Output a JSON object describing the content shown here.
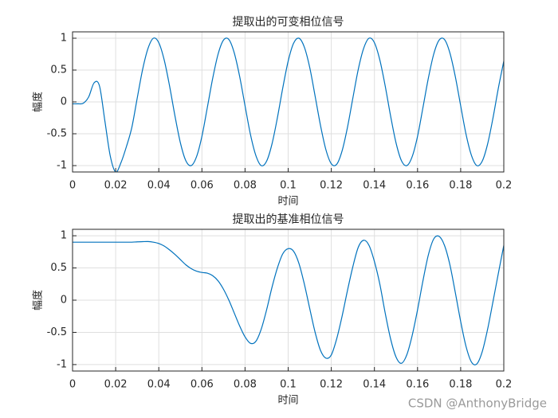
{
  "watermark": "CSDN @AnthonyBridge",
  "chart_data": [
    {
      "type": "line",
      "title": "提取出的可变相位信号",
      "xlabel": "时间",
      "ylabel": "幅度",
      "x": [
        0,
        0.0025,
        0.005,
        0.0075,
        0.01,
        0.0125,
        0.015,
        0.0175,
        0.02,
        0.0225,
        0.025,
        0.0275,
        0.03,
        0.0325,
        0.035,
        0.0375,
        0.04,
        0.0425,
        0.045,
        0.0475,
        0.05,
        0.0525,
        0.055,
        0.0575,
        0.06,
        0.0625,
        0.065,
        0.0675,
        0.07,
        0.0725,
        0.075,
        0.0775,
        0.08,
        0.0825,
        0.085,
        0.0875,
        0.09,
        0.0925,
        0.095,
        0.0975,
        0.1,
        0.1025,
        0.105,
        0.1075,
        0.11,
        0.1125,
        0.115,
        0.1175,
        0.12,
        0.1225,
        0.125,
        0.1275,
        0.13,
        0.1325,
        0.135,
        0.1375,
        0.14,
        0.1425,
        0.145,
        0.1475,
        0.15,
        0.1525,
        0.155,
        0.1575,
        0.16,
        0.1625,
        0.165,
        0.1675,
        0.17,
        0.1725,
        0.175,
        0.1775,
        0.18,
        0.1825,
        0.185,
        0.1875,
        0.19,
        0.1925,
        0.195,
        0.1975,
        0.2
      ],
      "series": [
        {
          "color": "#0072bd",
          "values": [
            -0.03,
            -0.03,
            -0.02,
            0.08,
            0.3,
            0.25,
            -0.3,
            -0.85,
            -1.1,
            -0.95,
            -0.7,
            -0.4,
            0.06,
            0.51,
            0.84,
            1.0,
            0.93,
            0.66,
            0.25,
            -0.22,
            -0.64,
            -0.92,
            -1.0,
            -0.86,
            -0.54,
            -0.09,
            0.37,
            0.75,
            0.97,
            0.98,
            0.77,
            0.4,
            -0.06,
            -0.51,
            -0.84,
            -1.0,
            -0.93,
            -0.66,
            -0.25,
            0.22,
            0.64,
            0.92,
            1.0,
            0.86,
            0.54,
            0.09,
            -0.37,
            -0.75,
            -0.97,
            -0.98,
            -0.77,
            -0.4,
            0.06,
            0.51,
            0.84,
            1.0,
            0.93,
            0.66,
            0.25,
            -0.22,
            -0.64,
            -0.92,
            -1.0,
            -0.86,
            -0.54,
            -0.09,
            0.37,
            0.75,
            0.97,
            0.98,
            0.77,
            0.4,
            -0.06,
            -0.51,
            -0.84,
            -1.0,
            -0.93,
            -0.66,
            -0.25,
            0.22,
            0.64
          ]
        }
      ],
      "xlim": [
        0,
        0.2
      ],
      "ylim": [
        -1.1,
        1.1
      ],
      "xticks": [
        0,
        0.02,
        0.04,
        0.06,
        0.08,
        0.1,
        0.12,
        0.14,
        0.16,
        0.18,
        0.2
      ],
      "yticks": [
        -1,
        -0.5,
        0,
        0.5,
        1
      ],
      "grid": true
    },
    {
      "type": "line",
      "title": "提取出的基准相位信号",
      "xlabel": "时间",
      "ylabel": "幅度",
      "x": [
        0,
        0.0025,
        0.005,
        0.0075,
        0.01,
        0.0125,
        0.015,
        0.0175,
        0.02,
        0.0225,
        0.025,
        0.0275,
        0.03,
        0.0325,
        0.035,
        0.0375,
        0.04,
        0.0425,
        0.045,
        0.0475,
        0.05,
        0.0525,
        0.055,
        0.0575,
        0.06,
        0.0625,
        0.065,
        0.0675,
        0.07,
        0.0725,
        0.075,
        0.0775,
        0.08,
        0.0825,
        0.085,
        0.0875,
        0.09,
        0.0925,
        0.095,
        0.0975,
        0.1,
        0.1025,
        0.105,
        0.1075,
        0.11,
        0.1125,
        0.115,
        0.1175,
        0.12,
        0.1225,
        0.125,
        0.1275,
        0.13,
        0.1325,
        0.135,
        0.1375,
        0.14,
        0.1425,
        0.145,
        0.1475,
        0.15,
        0.1525,
        0.155,
        0.1575,
        0.16,
        0.1625,
        0.165,
        0.1675,
        0.17,
        0.1725,
        0.175,
        0.1775,
        0.18,
        0.1825,
        0.185,
        0.1875,
        0.19,
        0.1925,
        0.195,
        0.1975,
        0.2
      ],
      "series": [
        {
          "color": "#0072bd",
          "values": [
            0.9,
            0.9,
            0.9,
            0.9,
            0.9,
            0.9,
            0.9,
            0.9,
            0.9,
            0.9,
            0.9,
            0.9,
            0.905,
            0.908,
            0.91,
            0.9,
            0.88,
            0.84,
            0.78,
            0.71,
            0.63,
            0.55,
            0.49,
            0.45,
            0.43,
            0.42,
            0.38,
            0.3,
            0.17,
            0.0,
            -0.2,
            -0.4,
            -0.57,
            -0.67,
            -0.64,
            -0.45,
            -0.15,
            0.2,
            0.5,
            0.72,
            0.8,
            0.76,
            0.57,
            0.25,
            -0.13,
            -0.5,
            -0.78,
            -0.9,
            -0.85,
            -0.6,
            -0.25,
            0.15,
            0.52,
            0.82,
            0.93,
            0.85,
            0.6,
            0.25,
            -0.2,
            -0.6,
            -0.88,
            -0.98,
            -0.85,
            -0.55,
            -0.15,
            0.3,
            0.7,
            0.95,
            0.99,
            0.85,
            0.55,
            0.12,
            -0.33,
            -0.72,
            -0.96,
            -0.99,
            -0.8,
            -0.45,
            -0.02,
            0.42,
            0.85
          ]
        }
      ],
      "xlim": [
        0,
        0.2
      ],
      "ylim": [
        -1.1,
        1.1
      ],
      "xticks": [
        0,
        0.02,
        0.04,
        0.06,
        0.08,
        0.1,
        0.12,
        0.14,
        0.16,
        0.18,
        0.2
      ],
      "yticks": [
        -1,
        -0.5,
        0,
        0.5,
        1
      ],
      "grid": true
    }
  ]
}
